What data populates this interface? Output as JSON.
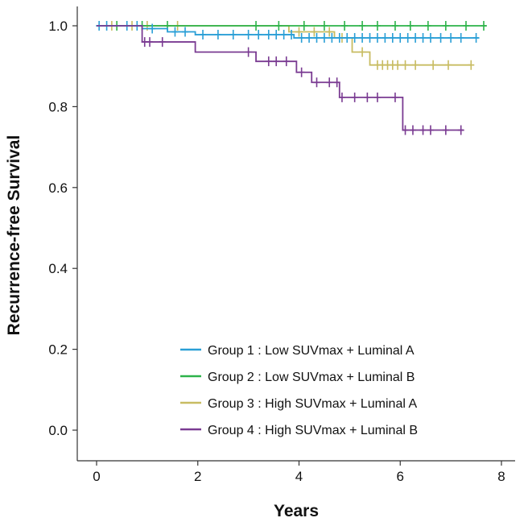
{
  "chart_data": {
    "type": "line",
    "subtype": "kaplan-meier",
    "xlabel": "Years",
    "ylabel": "Recurrence-free Survival",
    "xlim": [
      0,
      8
    ],
    "ylim": [
      0.0,
      1.0
    ],
    "xticks": [
      "0",
      "2",
      "4",
      "6",
      "8"
    ],
    "yticks": [
      "0.0",
      "0.2",
      "0.4",
      "0.6",
      "0.8",
      "1.0"
    ],
    "grid": false,
    "legend_position": "bottom-right",
    "series": [
      {
        "name": "Group 1 : Low SUVmax + Luminal A",
        "color": "#2a9fd6",
        "steps": [
          [
            0,
            1.0
          ],
          [
            0.9,
            0.993
          ],
          [
            1.4,
            0.985
          ],
          [
            1.95,
            0.978
          ],
          [
            3.9,
            0.97
          ],
          [
            7.55,
            0.97
          ]
        ],
        "censored": [
          0.05,
          0.2,
          0.6,
          0.8,
          1.1,
          1.55,
          1.75,
          2.1,
          2.4,
          2.7,
          3.0,
          3.2,
          3.4,
          3.55,
          3.7,
          3.85,
          4.05,
          4.2,
          4.35,
          4.5,
          4.65,
          4.8,
          4.95,
          5.1,
          5.25,
          5.4,
          5.55,
          5.7,
          5.85,
          6.0,
          6.15,
          6.3,
          6.45,
          6.6,
          6.8,
          7.0,
          7.2,
          7.5
        ]
      },
      {
        "name": "Group 2 : Low SUVmax + Luminal B",
        "color": "#2db34a",
        "steps": [
          [
            0,
            1.0
          ],
          [
            7.7,
            1.0
          ]
        ],
        "censored": [
          0.4,
          0.9,
          1.4,
          3.15,
          3.6,
          4.1,
          4.5,
          4.9,
          5.25,
          5.55,
          5.9,
          6.2,
          6.55,
          6.9,
          7.3,
          7.65
        ]
      },
      {
        "name": "Group 3 : High SUVmax + Luminal A",
        "color": "#c8bc62",
        "steps": [
          [
            0,
            1.0
          ],
          [
            3.8,
            0.985
          ],
          [
            4.7,
            0.97
          ],
          [
            5.05,
            0.935
          ],
          [
            5.4,
            0.903
          ],
          [
            7.4,
            0.903
          ]
        ],
        "censored": [
          0.3,
          0.7,
          1.0,
          1.6,
          4.0,
          4.3,
          4.6,
          4.85,
          5.25,
          5.55,
          5.65,
          5.75,
          5.85,
          5.95,
          6.1,
          6.3,
          6.65,
          6.95,
          7.4
        ]
      },
      {
        "name": "Group 4 : High SUVmax + Luminal B",
        "color": "#7a3b92",
        "steps": [
          [
            0,
            1.0
          ],
          [
            0.9,
            0.96
          ],
          [
            1.95,
            0.935
          ],
          [
            3.15,
            0.912
          ],
          [
            3.95,
            0.885
          ],
          [
            4.25,
            0.86
          ],
          [
            4.8,
            0.823
          ],
          [
            6.05,
            0.742
          ],
          [
            7.25,
            0.742
          ]
        ],
        "censored": [
          0.95,
          1.05,
          1.3,
          3.0,
          3.4,
          3.55,
          3.75,
          4.05,
          4.35,
          4.6,
          4.75,
          4.85,
          5.1,
          5.35,
          5.55,
          5.9,
          6.1,
          6.25,
          6.45,
          6.6,
          6.9,
          7.2
        ]
      }
    ]
  }
}
